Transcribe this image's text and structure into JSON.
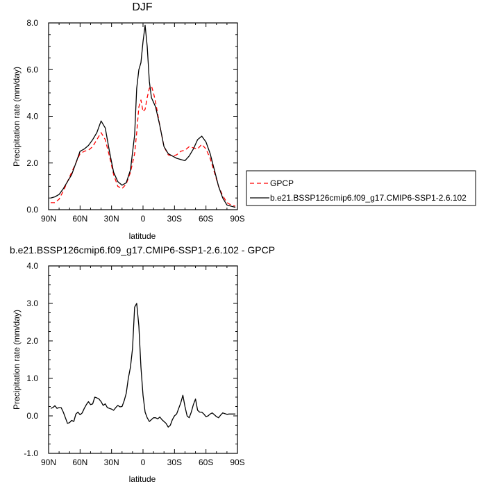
{
  "chart_data": [
    {
      "type": "line",
      "title": "DJF",
      "xlabel": "latitude",
      "ylabel": "Precipitation rate (mm/day)",
      "xlim": [
        90,
        -90
      ],
      "ylim": [
        0,
        8
      ],
      "x_ticks": [
        90,
        60,
        30,
        0,
        -30,
        -60,
        -90
      ],
      "x_tick_labels": [
        "90N",
        "60N",
        "30N",
        "0",
        "30S",
        "60S",
        "90S"
      ],
      "y_ticks": [
        0,
        2,
        4,
        6,
        8
      ],
      "y_tick_labels": [
        "0.0",
        "2.0",
        "4.0",
        "6.0",
        "8.0"
      ],
      "grid": false,
      "legend_position": "right",
      "series": [
        {
          "name": "GPCP",
          "color": "#ff0000",
          "dash": "dashed",
          "x": [
            88,
            84,
            80,
            76,
            72,
            68,
            64,
            60,
            56,
            52,
            48,
            44,
            40,
            36,
            32,
            28,
            24,
            20,
            16,
            12,
            8,
            6,
            4,
            2,
            0,
            -2,
            -4,
            -6,
            -8,
            -10,
            -12,
            -16,
            -20,
            -24,
            -28,
            -32,
            -36,
            -40,
            -44,
            -48,
            -52,
            -56,
            -60,
            -64,
            -68,
            -72,
            -76,
            -80,
            -84,
            -88
          ],
          "y": [
            0.3,
            0.3,
            0.45,
            0.8,
            1.2,
            1.6,
            2.0,
            2.4,
            2.5,
            2.55,
            2.7,
            3.0,
            3.3,
            3.0,
            2.3,
            1.5,
            1.0,
            0.9,
            1.1,
            1.6,
            2.4,
            3.3,
            4.4,
            4.7,
            4.2,
            4.3,
            4.8,
            5.2,
            5.3,
            5.0,
            4.6,
            3.6,
            2.7,
            2.35,
            2.3,
            2.35,
            2.5,
            2.55,
            2.7,
            2.65,
            2.6,
            2.8,
            2.6,
            2.2,
            1.6,
            1.0,
            0.6,
            0.3,
            0.2,
            0.15
          ]
        },
        {
          "name": "b.e21.BSSP126cmip6.f09_g17.CMIP6-SSP1-2.6.102",
          "color": "#000000",
          "dash": "solid",
          "x": [
            88,
            84,
            80,
            76,
            72,
            68,
            64,
            60,
            56,
            52,
            48,
            44,
            40,
            36,
            32,
            28,
            24,
            20,
            16,
            12,
            8,
            6,
            4,
            2,
            0,
            -2,
            -4,
            -6,
            -8,
            -10,
            -12,
            -16,
            -20,
            -24,
            -28,
            -32,
            -36,
            -40,
            -44,
            -48,
            -52,
            -56,
            -60,
            -64,
            -68,
            -72,
            -76,
            -80,
            -84,
            -88
          ],
          "y": [
            0.5,
            0.55,
            0.65,
            0.9,
            1.2,
            1.5,
            2.0,
            2.5,
            2.6,
            2.75,
            3.0,
            3.3,
            3.8,
            3.5,
            2.5,
            1.6,
            1.2,
            1.05,
            1.15,
            1.7,
            3.2,
            5.2,
            6.0,
            6.3,
            7.2,
            7.9,
            7.0,
            5.5,
            4.8,
            4.6,
            4.4,
            3.6,
            2.7,
            2.4,
            2.3,
            2.2,
            2.15,
            2.1,
            2.3,
            2.6,
            3.0,
            3.15,
            2.9,
            2.4,
            1.7,
            1.0,
            0.5,
            0.2,
            0.15,
            0.1
          ]
        }
      ]
    },
    {
      "type": "line",
      "title": "b.e21.BSSP126cmip6.f09_g17.CMIP6-SSP1-2.6.102 - GPCP",
      "xlabel": "latitude",
      "ylabel": "Precipitation rate (mm/day)",
      "xlim": [
        90,
        -90
      ],
      "ylim": [
        -1,
        4
      ],
      "x_ticks": [
        90,
        60,
        30,
        0,
        -30,
        -60,
        -90
      ],
      "x_tick_labels": [
        "90N",
        "60N",
        "30N",
        "0",
        "30S",
        "60S",
        "90S"
      ],
      "y_ticks": [
        -1,
        0,
        1,
        2,
        3,
        4
      ],
      "y_tick_labels": [
        "-1.0",
        "0.0",
        "1.0",
        "2.0",
        "3.0",
        "4.0"
      ],
      "grid": false,
      "series": [
        {
          "color": "#000000",
          "dash": "solid",
          "x": [
            88,
            86,
            84,
            82,
            80,
            78,
            76,
            74,
            72,
            70,
            68,
            66,
            64,
            62,
            60,
            58,
            56,
            54,
            52,
            50,
            48,
            46,
            44,
            42,
            40,
            38,
            36,
            34,
            32,
            30,
            28,
            26,
            24,
            22,
            20,
            18,
            16,
            14,
            12,
            10,
            8,
            6,
            4,
            2,
            0,
            -2,
            -4,
            -6,
            -8,
            -10,
            -12,
            -14,
            -16,
            -18,
            -20,
            -22,
            -24,
            -26,
            -28,
            -30,
            -32,
            -34,
            -36,
            -38,
            -40,
            -42,
            -44,
            -46,
            -48,
            -50,
            -52,
            -54,
            -56,
            -58,
            -60,
            -62,
            -64,
            -66,
            -68,
            -70,
            -72,
            -74,
            -76,
            -78,
            -80,
            -82,
            -84,
            -86,
            -88
          ],
          "y": [
            0.2,
            0.22,
            0.27,
            0.2,
            0.22,
            0.22,
            0.1,
            -0.05,
            -0.2,
            -0.18,
            -0.12,
            -0.15,
            0.05,
            0.1,
            0.03,
            0.08,
            0.2,
            0.3,
            0.38,
            0.3,
            0.32,
            0.5,
            0.48,
            0.45,
            0.38,
            0.28,
            0.32,
            0.22,
            0.2,
            0.18,
            0.15,
            0.22,
            0.28,
            0.24,
            0.25,
            0.4,
            0.6,
            1.0,
            1.3,
            1.8,
            2.9,
            3.0,
            2.4,
            1.3,
            0.55,
            0.1,
            -0.05,
            -0.15,
            -0.1,
            -0.05,
            -0.05,
            -0.08,
            -0.03,
            -0.1,
            -0.15,
            -0.2,
            -0.3,
            -0.25,
            -0.1,
            0.0,
            0.05,
            0.2,
            0.35,
            0.55,
            0.25,
            0.0,
            -0.05,
            0.1,
            0.3,
            0.45,
            0.15,
            0.1,
            0.1,
            0.05,
            -0.02,
            0.0,
            0.05,
            0.08,
            0.03,
            -0.02,
            -0.05,
            0.02,
            0.08,
            0.06,
            0.04,
            0.05,
            0.05,
            0.05,
            0.05
          ]
        }
      ]
    }
  ]
}
